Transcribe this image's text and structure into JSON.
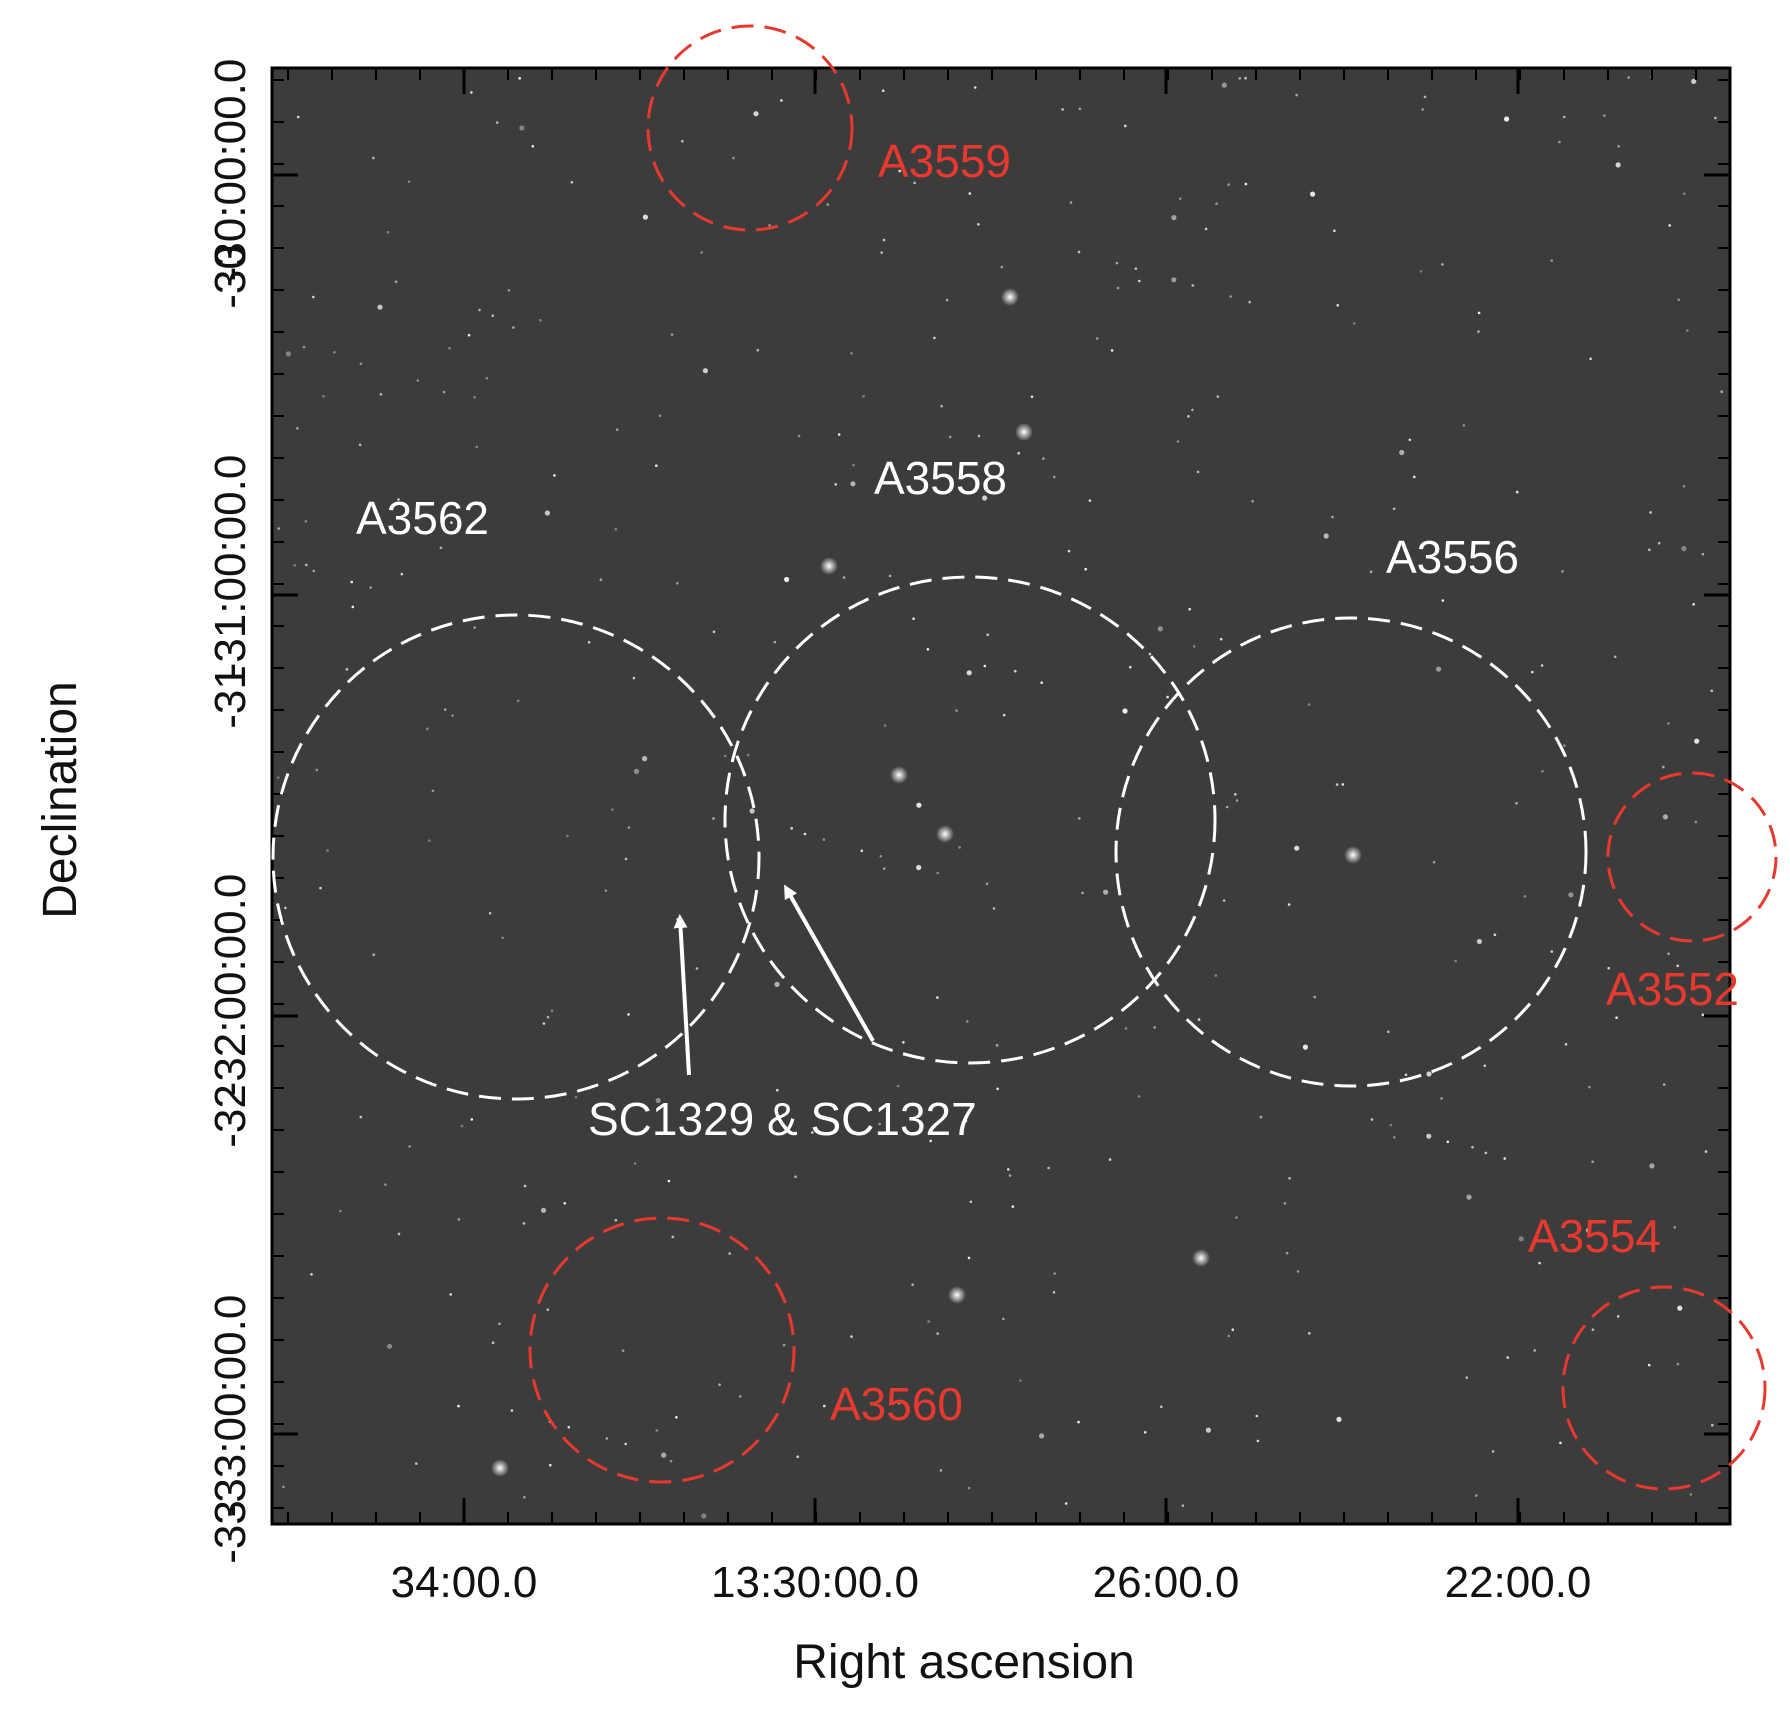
{
  "figure": {
    "xlabel": "Right ascension",
    "ylabel": "Declination",
    "x_ticks": [
      "34:00.0",
      "13:30:00.0",
      "26:00.0",
      "22:00.0"
    ],
    "y_ticks": [
      "-30:00:00.0",
      "-30",
      "-31:00:00.0",
      "-31",
      "-32:00:00.0",
      "-32",
      "-33:00:00.0",
      "-33"
    ],
    "background_color": "#3c3c3c",
    "label_colors": {
      "main_clusters": "#ffffff",
      "other_clusters": "#e8392f"
    }
  },
  "clusters": [
    {
      "name": "A3562",
      "color": "#ffffff",
      "style": "dashed"
    },
    {
      "name": "A3558",
      "color": "#ffffff",
      "style": "dashed"
    },
    {
      "name": "A3556",
      "color": "#ffffff",
      "style": "dashed"
    },
    {
      "name": "A3559",
      "color": "#e8392f",
      "style": "dashed"
    },
    {
      "name": "A3552",
      "color": "#e8392f",
      "style": "dashed"
    },
    {
      "name": "A3560",
      "color": "#e8392f",
      "style": "dashed"
    },
    {
      "name": "A3554",
      "color": "#e8392f",
      "style": "dashed"
    }
  ],
  "annotation": {
    "text": "SC1329 & SC1327",
    "arrows": 2,
    "color": "#ffffff"
  }
}
